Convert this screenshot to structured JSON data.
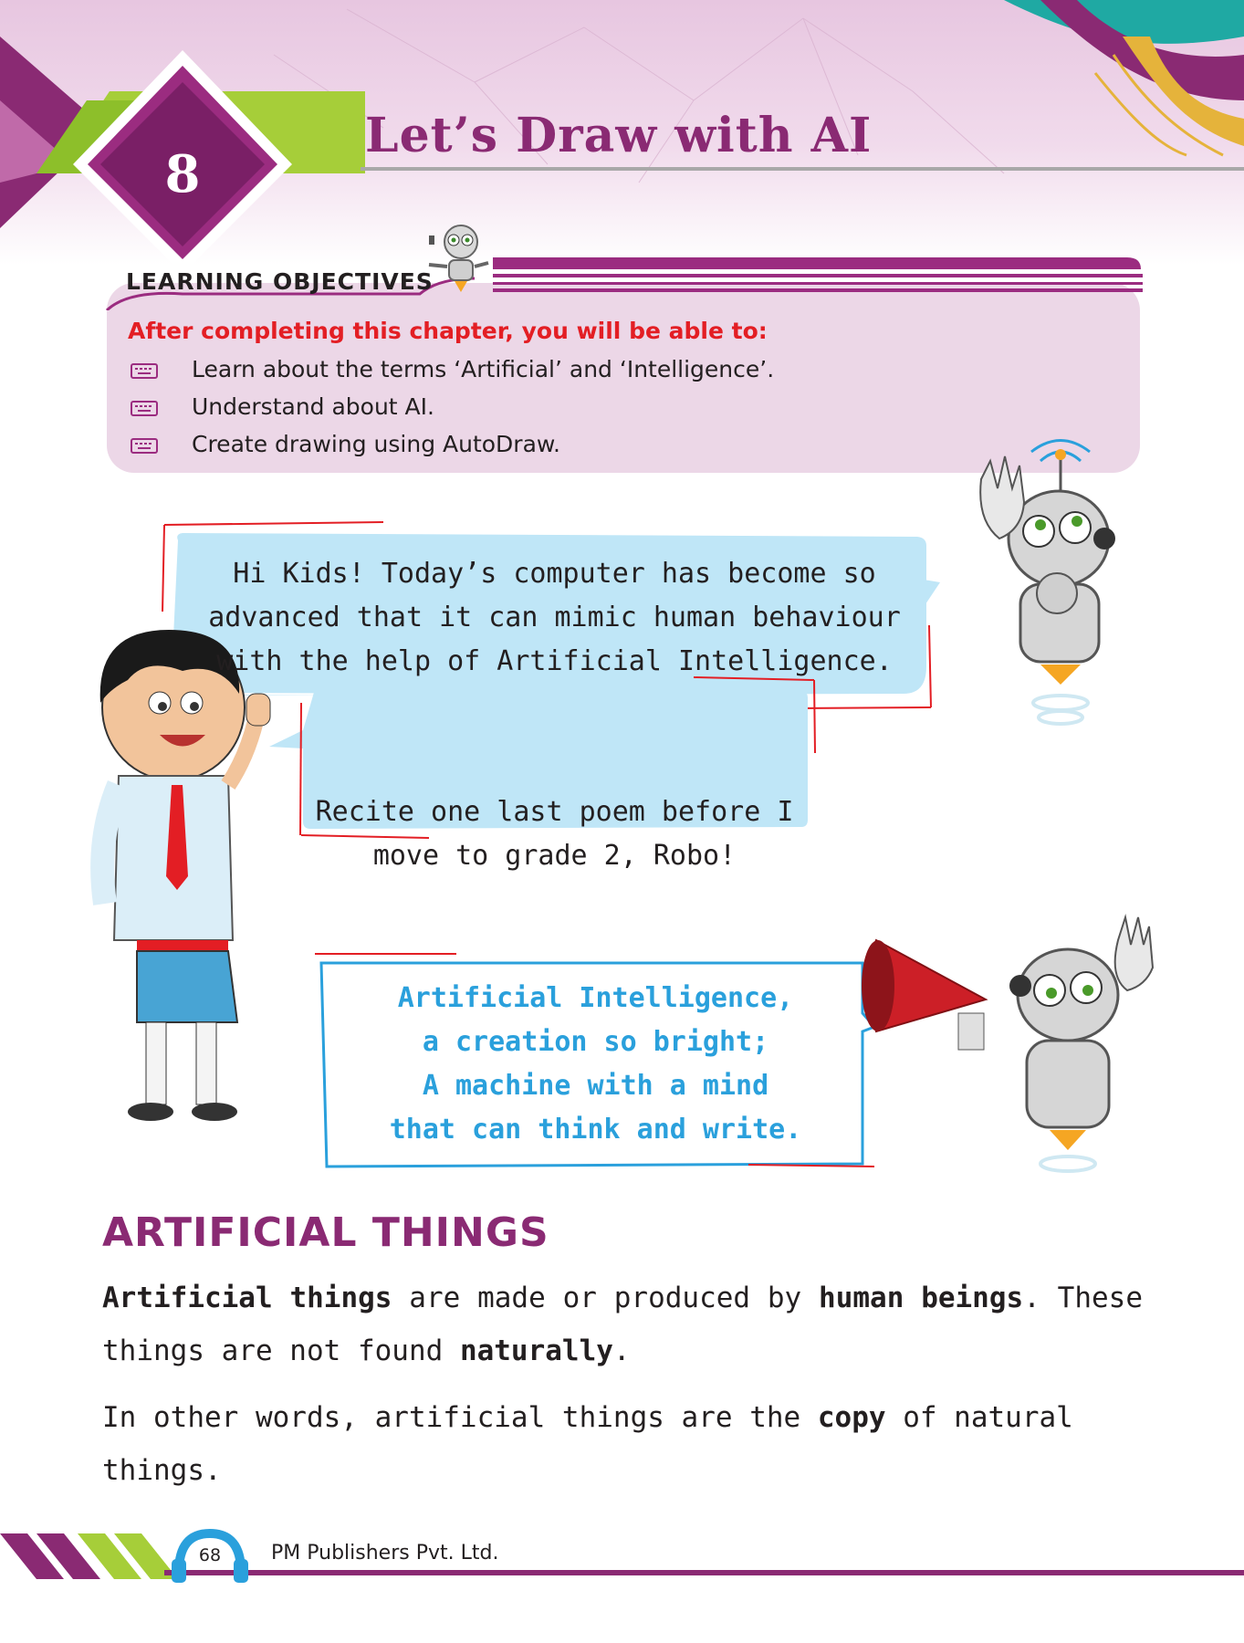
{
  "header": {
    "chapter_number": "8",
    "chapter_title": "Let’s Draw with AI"
  },
  "learning_objectives": {
    "heading": "LEARNING OBJECTIVES",
    "intro": "After completing this chapter, you will be able to:",
    "items": [
      "Learn about the terms ‘Artificial’ and ‘Intelligence’.",
      "Understand about AI.",
      "Create drawing using AutoDraw."
    ]
  },
  "dialogue": {
    "robot_line": [
      "Hi Kids! Today’s computer has become so",
      "advanced that it can mimic human behaviour",
      "with the help of Artificial Intelligence."
    ],
    "kid_line": [
      "Recite one last poem before I",
      "move to grade 2, Robo!"
    ],
    "poem": [
      "Artificial Intelligence,",
      "a creation so bright;",
      "A machine with a mind",
      "that can think and write."
    ]
  },
  "section": {
    "title": "ARTIFICIAL THINGS",
    "para1": {
      "t1": "Artificial things",
      "t2": " are made or produced by ",
      "t3": "human beings",
      "t4": ". These things are not found ",
      "t5": "naturally",
      "t6": "."
    },
    "para2": {
      "t1": "In other words, artificial things are the ",
      "t2": "copy",
      "t3": " of natural things."
    }
  },
  "footer": {
    "page_number": "68",
    "publisher": "PM Publishers Pvt. Ltd."
  },
  "colors": {
    "brand_purple": "#8a2a73",
    "accent_green": "#a6ce39",
    "bubble_blue": "#bfe6f7",
    "poem_blue": "#2aa0dc",
    "accent_red": "#e31e24"
  }
}
